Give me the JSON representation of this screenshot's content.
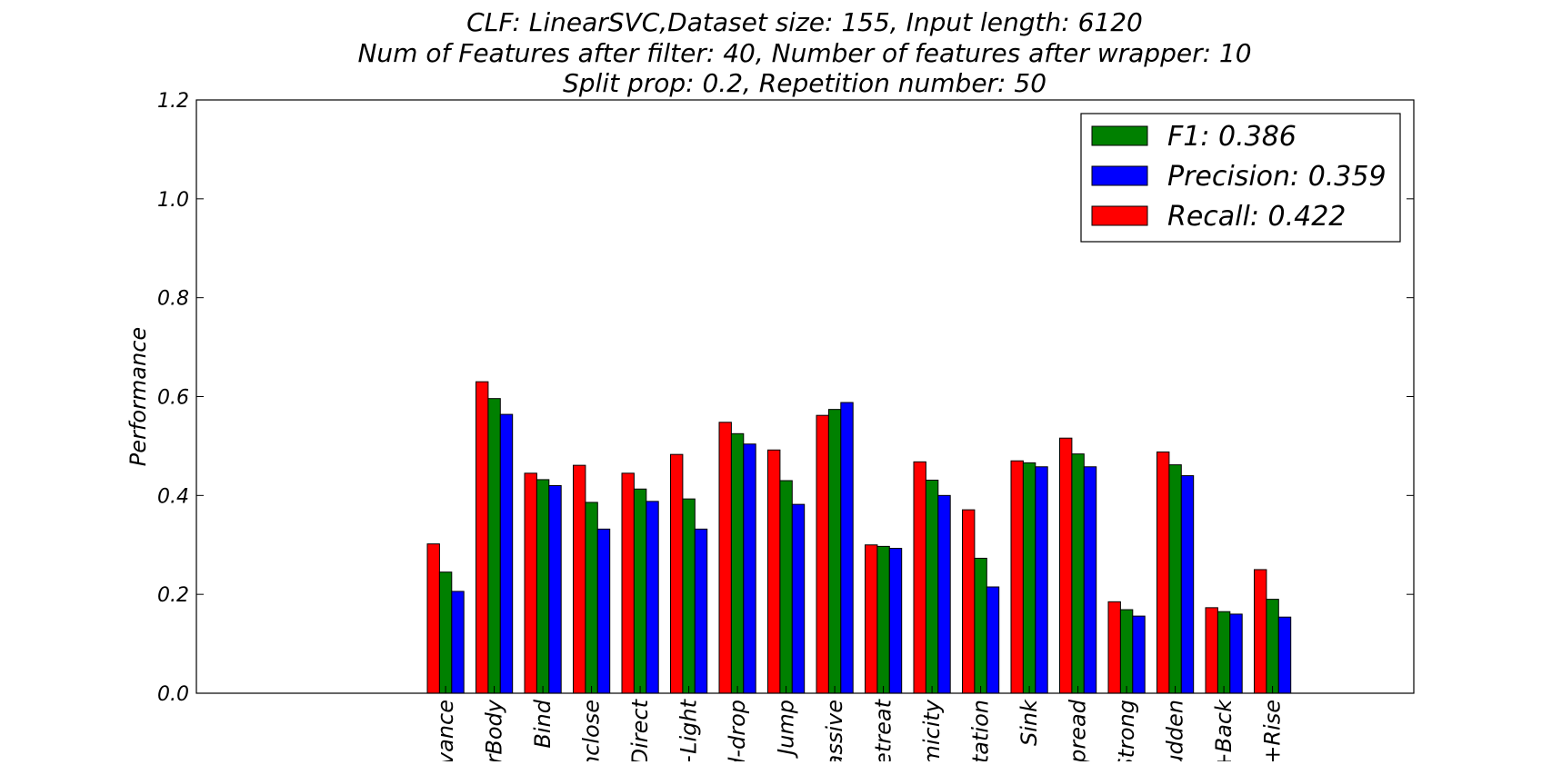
{
  "chart_data": {
    "type": "bar",
    "title_lines": [
      "CLF: LinearSVC,Dataset size: 155, Input length: 6120",
      "Num of Features after filter: 40, Number of features after wrapper: 10",
      "Split prop: 0.2, Repetition number: 50"
    ],
    "xlabel": "",
    "ylabel": "Performance",
    "ylim": [
      0,
      1.2
    ],
    "yticks": [
      "0.0",
      "0.2",
      "0.4",
      "0.6",
      "0.8",
      "1.0",
      "1.2"
    ],
    "grid": false,
    "legend_placement": "top-right",
    "categories": [
      "vance",
      "erBody",
      "Bind",
      "nclose",
      "Direct",
      "+Light",
      "d-drop",
      "Jump",
      "assive",
      "etreat",
      "micity",
      "otation",
      "Sink",
      "Spread",
      "Strong",
      "udden",
      "+Back",
      "p+Rise"
    ],
    "series": [
      {
        "name": "Recall: 0.422",
        "color": "#ff0000",
        "values": [
          0.302,
          0.63,
          0.445,
          0.461,
          0.445,
          0.483,
          0.548,
          0.492,
          0.562,
          0.3,
          0.468,
          0.371,
          0.47,
          0.516,
          0.185,
          0.488,
          0.173,
          0.25
        ]
      },
      {
        "name": "F1: 0.386",
        "color": "#008000",
        "values": [
          0.245,
          0.596,
          0.432,
          0.386,
          0.413,
          0.393,
          0.525,
          0.43,
          0.574,
          0.297,
          0.431,
          0.273,
          0.466,
          0.484,
          0.169,
          0.462,
          0.165,
          0.19
        ]
      },
      {
        "name": "Precision: 0.359",
        "color": "#0000ff",
        "values": [
          0.206,
          0.564,
          0.42,
          0.332,
          0.388,
          0.332,
          0.504,
          0.382,
          0.588,
          0.293,
          0.4,
          0.215,
          0.458,
          0.458,
          0.156,
          0.44,
          0.16,
          0.154
        ]
      }
    ],
    "legend_order": [
      1,
      2,
      0
    ]
  }
}
